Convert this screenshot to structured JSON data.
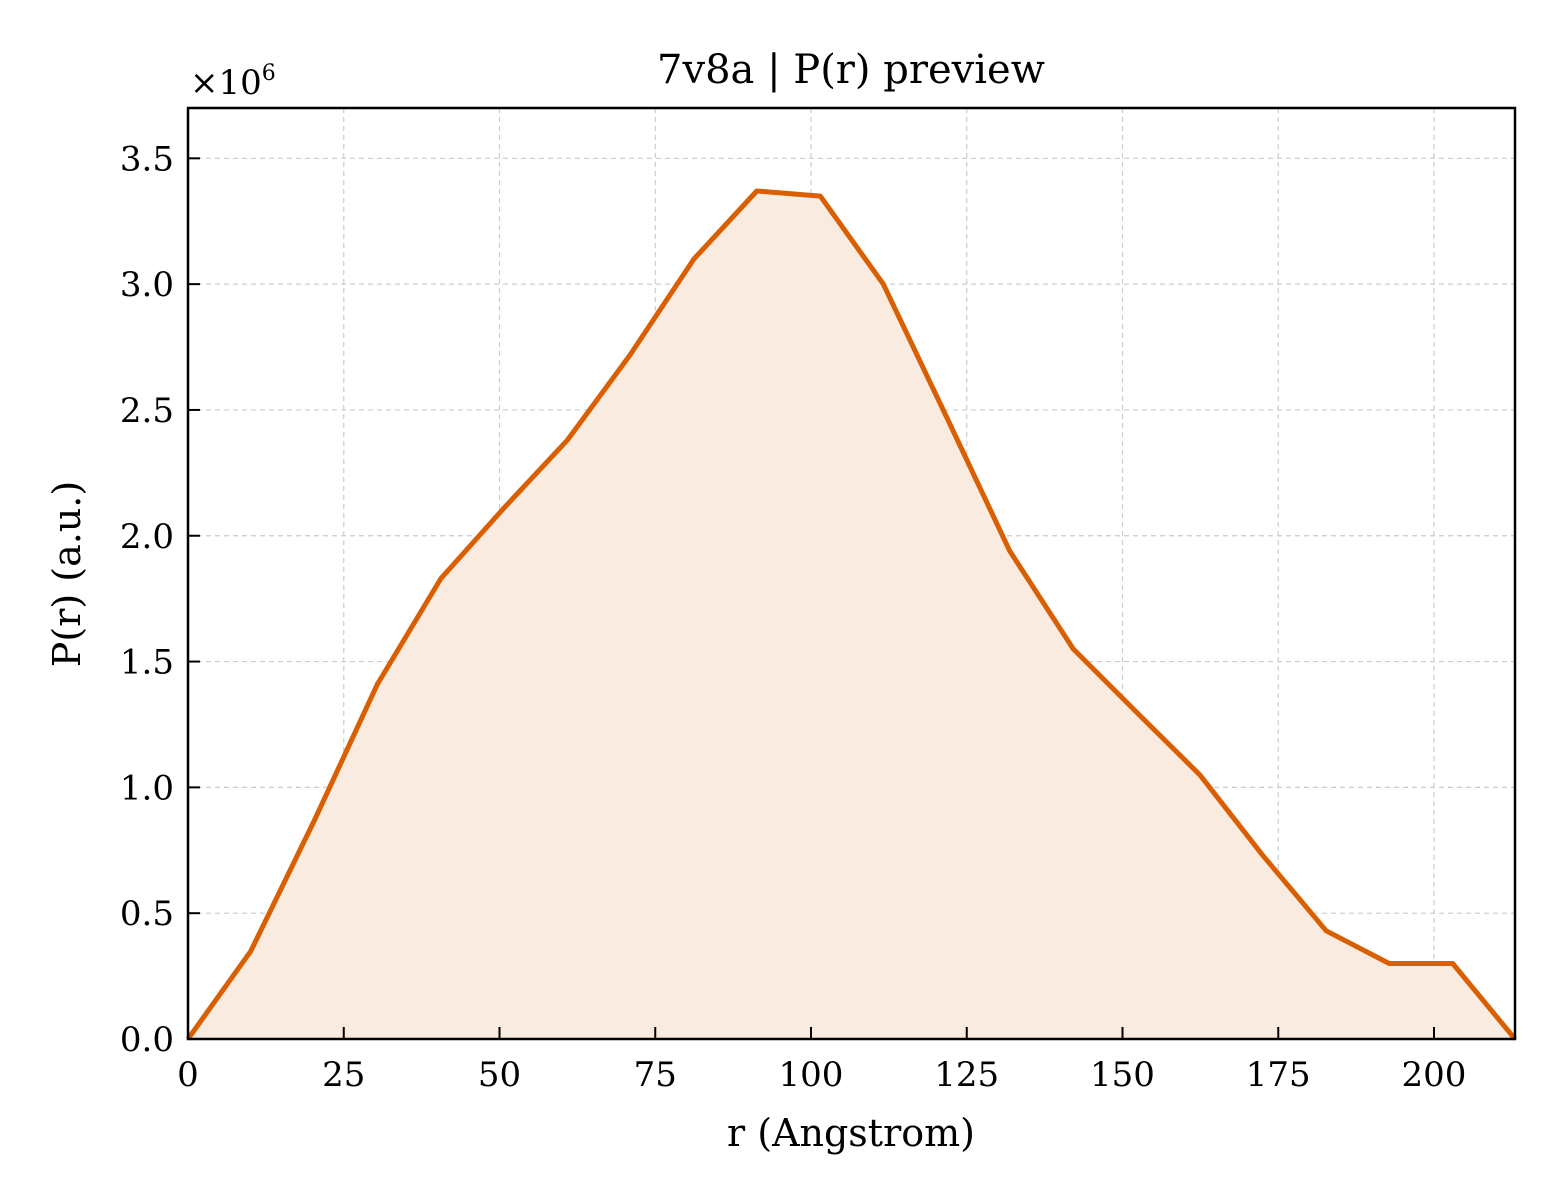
{
  "chart_data": {
    "type": "area",
    "title": "7v8a | P(r) preview",
    "xlabel": "r (Angstrom)",
    "ylabel": "P(r) (a.u.)",
    "y_multiplier_label": "×10",
    "y_multiplier_exponent": "6",
    "xlim": [
      0,
      213
    ],
    "ylim": [
      0,
      3.7
    ],
    "x_ticks": [
      0,
      25,
      50,
      75,
      100,
      125,
      150,
      175,
      200
    ],
    "y_ticks": [
      0.0,
      0.5,
      1.0,
      1.5,
      2.0,
      2.5,
      3.0,
      3.5
    ],
    "x_tick_labels": [
      "0",
      "25",
      "50",
      "75",
      "100",
      "125",
      "150",
      "175",
      "200"
    ],
    "y_tick_labels": [
      "0.0",
      "0.5",
      "1.0",
      "1.5",
      "2.0",
      "2.5",
      "3.0",
      "3.5"
    ],
    "grid": true,
    "line_color": "#d95f02",
    "fill_color": "#f9ebe0",
    "series": [
      {
        "x": [
          0,
          10.1,
          20.3,
          30.4,
          40.6,
          50.7,
          60.9,
          71.0,
          81.2,
          91.3,
          101.5,
          111.6,
          121.8,
          131.9,
          142.1,
          152.2,
          162.4,
          172.5,
          182.7,
          192.8,
          203.0,
          213.0
        ],
        "y": [
          0.0,
          0.35,
          0.87,
          1.41,
          1.83,
          2.11,
          2.38,
          2.72,
          3.1,
          3.37,
          3.35,
          3.0,
          2.47,
          1.94,
          1.55,
          1.3,
          1.05,
          0.73,
          0.43,
          0.3,
          0.3,
          0.0
        ]
      }
    ]
  }
}
